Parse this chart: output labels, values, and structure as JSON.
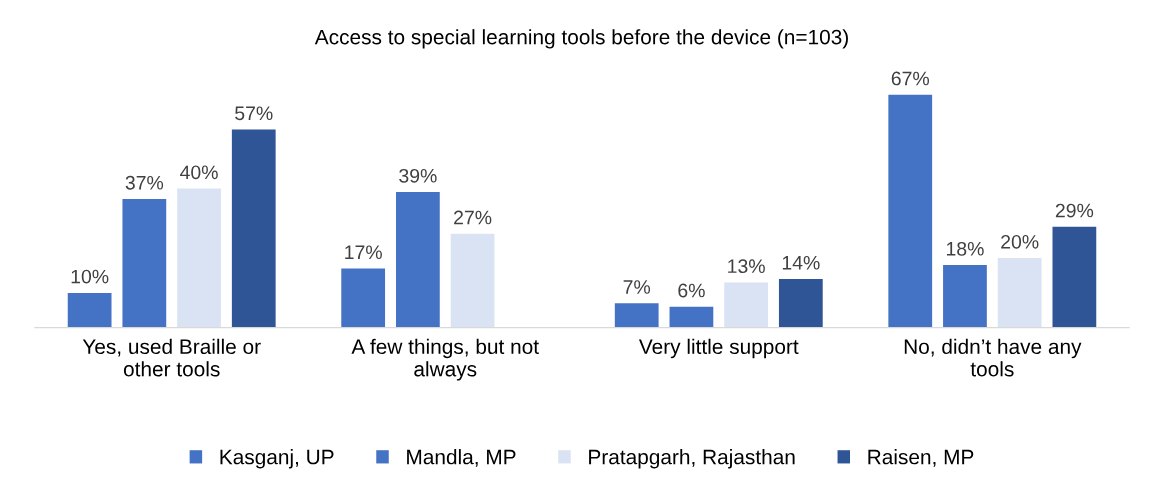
{
  "chart_data": {
    "type": "bar",
    "title": "Access to special learning tools before the device (n=103)",
    "categories": [
      "Yes, used Braille or\nother tools",
      "A few things, but not\nalways",
      "Very little support",
      "No, didn’t have any\ntools"
    ],
    "series": [
      {
        "name": "Kasganj, UP",
        "color": "#4472c4",
        "values": [
          10,
          17,
          7,
          67
        ],
        "value_labels": [
          "10%",
          "17%",
          "7%",
          "67%"
        ]
      },
      {
        "name": "Mandla, MP",
        "color": "#4472c4",
        "values": [
          37,
          39,
          6,
          18
        ],
        "value_labels": [
          "37%",
          "39%",
          "6%",
          "18%"
        ]
      },
      {
        "name": "Pratapgarh, Rajasthan",
        "color": "#dae3f3",
        "values": [
          40,
          27,
          13,
          20
        ],
        "value_labels": [
          "40%",
          "27%",
          "13%",
          "20%"
        ]
      },
      {
        "name": "Raisen, MP",
        "color": "#2f5597",
        "values": [
          57,
          null,
          14,
          29
        ],
        "value_labels": [
          "57%",
          null,
          "14%",
          "29%"
        ]
      }
    ],
    "legend": "bottom",
    "grid": false
  }
}
